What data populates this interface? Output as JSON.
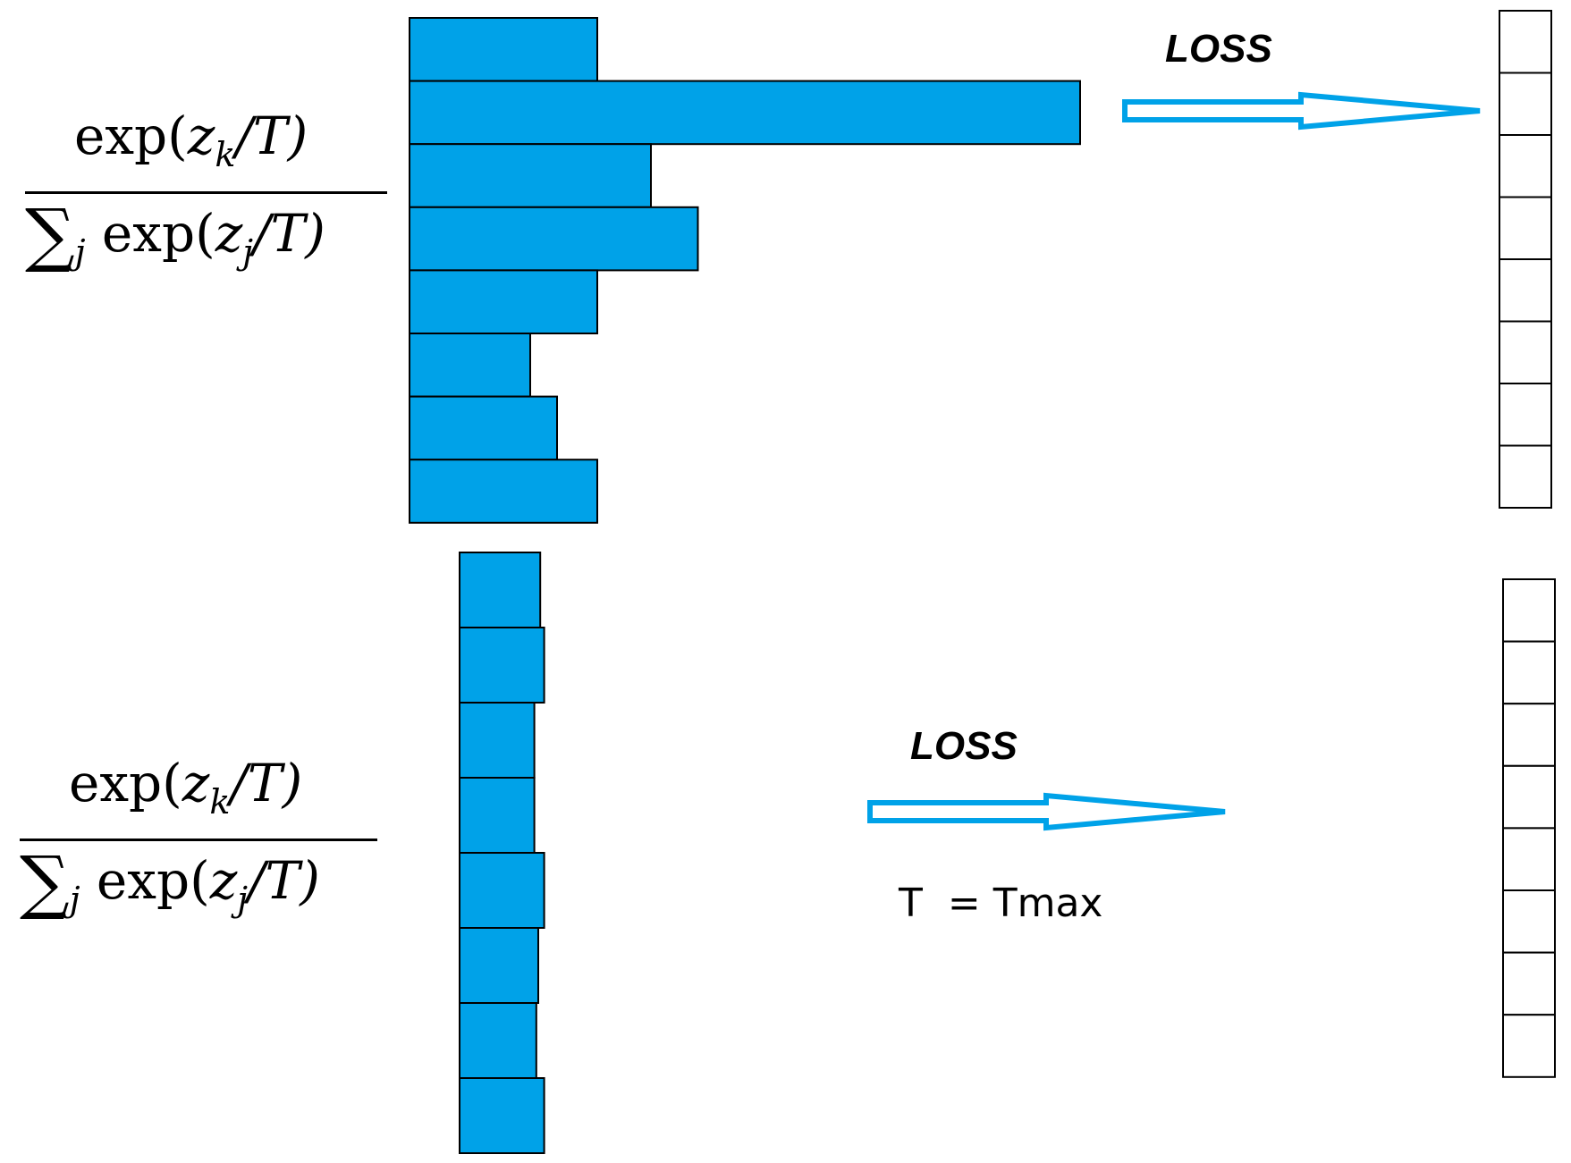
{
  "colors": {
    "bar": "#00a2e8",
    "arrow": "#00a2e8",
    "outline": "#000000"
  },
  "formula": {
    "exp_text": "exp(",
    "z": "z",
    "k": "k",
    "slash_T": "/T)",
    "sigma": "∑",
    "j": "j"
  },
  "top_panel": {
    "loss_label": "LOSS",
    "bars": [
      0.28,
      1.0,
      0.36,
      0.43,
      0.28,
      0.18,
      0.22,
      0.28
    ]
  },
  "bottom_panel": {
    "loss_label": "LOSS",
    "temperature_label": "T  = Tmax",
    "bars": [
      0.82,
      0.86,
      0.76,
      0.76,
      0.86,
      0.8,
      0.78,
      0.86
    ]
  },
  "output_boxes": {
    "top_count": 8,
    "bottom_count": 8
  }
}
